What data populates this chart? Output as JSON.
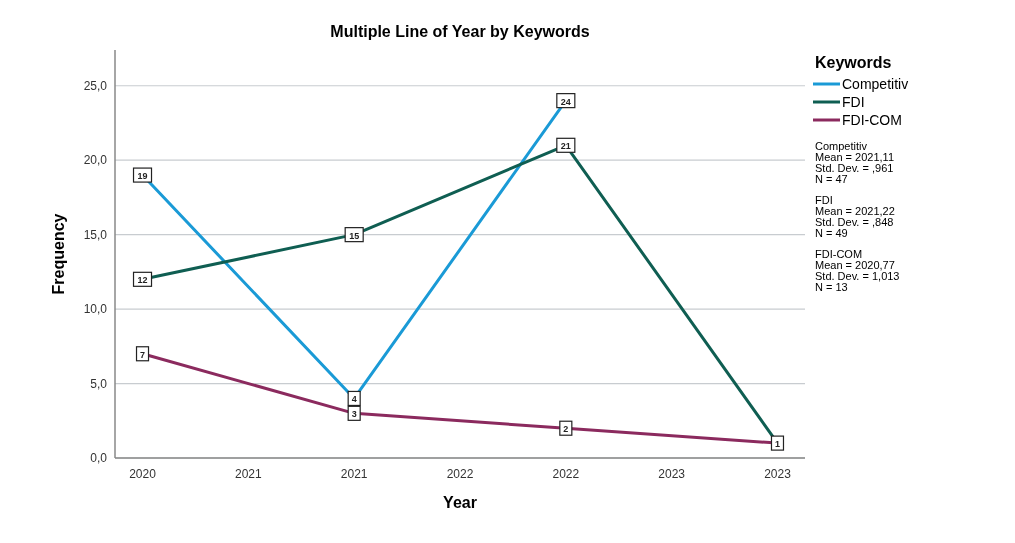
{
  "chart_data": {
    "type": "line",
    "title": "Multiple Line of Year by Keywords",
    "xlabel": "Year",
    "ylabel": "Frequency",
    "legend_title": "Keywords",
    "legend": "right",
    "grid": "y",
    "line_style": "solid",
    "marker": "square",
    "xlim": [
      2019.87,
      2023.13
    ],
    "xticks": [
      2020,
      {
        "value": 2020.5,
        "label": "2021"
      },
      2021,
      {
        "value": 2021.5,
        "label": "2022"
      },
      2022,
      {
        "value": 2022.5,
        "label": "2023"
      },
      2023
    ],
    "ylim": [
      0,
      27.4
    ],
    "yticks": [
      {
        "value": 0,
        "label": "0,0"
      },
      {
        "value": 5,
        "label": "5,0"
      },
      {
        "value": 10,
        "label": "10,0"
      },
      {
        "value": 15,
        "label": "15,0"
      },
      {
        "value": 20,
        "label": "20,0"
      },
      {
        "value": 25,
        "label": "25,0"
      }
    ],
    "series": [
      {
        "name": "Competitiv",
        "color": "#1a9ad6",
        "x": [
          2020,
          2021,
          2022
        ],
        "values": [
          19,
          4,
          24
        ],
        "value_labels": [
          "19",
          "4",
          "24"
        ]
      },
      {
        "name": "FDI",
        "color": "#0f5e52",
        "x": [
          2020,
          2021,
          2022,
          2023
        ],
        "values": [
          12,
          15,
          21,
          1
        ],
        "value_labels": [
          "12",
          "15",
          "21",
          null
        ]
      },
      {
        "name": "FDI-COM",
        "color": "#8b2a5e",
        "x": [
          2020,
          2021,
          2022,
          2023
        ],
        "values": [
          7,
          3,
          2,
          1
        ],
        "value_labels": [
          "7",
          "3",
          "2",
          "1"
        ]
      }
    ],
    "annotations": [
      "Competitiv\nMean = 2021,11\nStd. Dev. = ,961\nN = 47",
      "FDI\nMean = 2021,22\nStd. Dev. = ,848\nN = 49",
      "FDI-COM\nMean = 2020,77\nStd. Dev. = 1,013\nN = 13"
    ]
  }
}
